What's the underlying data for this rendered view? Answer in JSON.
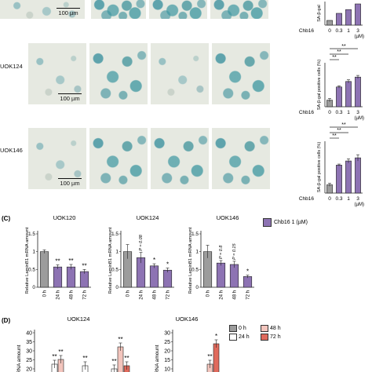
{
  "colors": {
    "purple": "#8d73b3",
    "gray": "#9c9c9c",
    "white": "#ffffff",
    "salmon": "#e39a8e",
    "stain": "#4c9aa6"
  },
  "panel_b": {
    "rows": [
      {
        "label": "",
        "scale": "100 µm"
      },
      {
        "label": "UOK124",
        "scale": "100 µm"
      },
      {
        "label": "UOK146",
        "scale": "100 µm"
      }
    ]
  },
  "panel_c": {
    "letter": "(C)",
    "legend": "Chb16 1 (µM)"
  },
  "panel_d": {
    "letter": "(D)",
    "left_title": "UOK124",
    "right_title": "UOK146",
    "legend": [
      "0 h",
      "24 h",
      "48 h",
      "72 h"
    ]
  },
  "chart_data": [
    {
      "id": "sa-top",
      "type": "bar",
      "ylabel": "SA-β-gal",
      "xlabel_prefix": "Chb16",
      "unit": "µM",
      "categories": [
        "0",
        "0.3",
        "1",
        "3"
      ],
      "values": [
        10,
        25,
        33,
        45
      ],
      "ylim": [
        0,
        50
      ],
      "significance": [],
      "partial": true
    },
    {
      "id": "sa-uok124",
      "type": "bar",
      "ylabel": "SA-β-gal positive cells (%)",
      "xlabel_prefix": "Chb16",
      "unit": "µM",
      "categories": [
        "0",
        "0.3",
        "1",
        "3"
      ],
      "values": [
        6,
        18,
        23,
        27
      ],
      "errors": [
        1.5,
        1,
        1.5,
        1.5
      ],
      "ylim": [
        0,
        40
      ],
      "significance": [
        {
          "from": 0,
          "to": 1,
          "label": "**"
        },
        {
          "from": 0,
          "to": 2,
          "label": "**"
        },
        {
          "from": 0,
          "to": 3,
          "label": "**"
        }
      ]
    },
    {
      "id": "sa-uok146",
      "type": "bar",
      "ylabel": "SA-β-gal positive cells (%)",
      "xlabel_prefix": "Chb16",
      "unit": "µM",
      "categories": [
        "0",
        "0.3",
        "1",
        "3"
      ],
      "values": [
        8,
        27,
        31,
        34
      ],
      "errors": [
        1.5,
        1,
        2,
        3
      ],
      "ylim": [
        0,
        50
      ],
      "significance": [
        {
          "from": 0,
          "to": 1,
          "label": "**"
        },
        {
          "from": 0,
          "to": 2,
          "label": "**"
        },
        {
          "from": 0,
          "to": 3,
          "label": "**"
        }
      ]
    },
    {
      "id": "c-uok120",
      "type": "bar",
      "title": "UOK120",
      "ylabel": "Relative LaminB1 mRNA amount",
      "categories": [
        "0 h",
        "24 h",
        "48 h",
        "72 h"
      ],
      "values": [
        1.0,
        0.57,
        0.57,
        0.44
      ],
      "errors": [
        0.05,
        0.06,
        0.07,
        0.06
      ],
      "ylim": [
        0,
        1.5
      ],
      "yticks": [
        "0",
        "0.5",
        "1",
        "1.5"
      ],
      "labels": [
        "",
        "**",
        "**",
        "**"
      ]
    },
    {
      "id": "c-uok124",
      "type": "bar",
      "title": "UOK124",
      "ylabel": "Relative LaminB1 mRNA amount",
      "categories": [
        "0 h",
        "24 h",
        "48 h",
        "72 h"
      ],
      "values": [
        1.0,
        0.83,
        0.6,
        0.48
      ],
      "errors": [
        0.2,
        0.15,
        0.06,
        0.06
      ],
      "ylim": [
        0,
        1.5
      ],
      "yticks": [
        "0",
        "0.5",
        "1",
        "1.5"
      ],
      "labels": [
        "",
        "P = 0.08",
        "*",
        "*"
      ]
    },
    {
      "id": "c-uok146",
      "type": "bar",
      "title": "UOK146",
      "ylabel": "Relative LaminB1 mRNA amount",
      "categories": [
        "0 h",
        "24 h",
        "48 h",
        "72 h"
      ],
      "values": [
        1.0,
        0.68,
        0.64,
        0.3
      ],
      "errors": [
        0.18,
        0.07,
        0.09,
        0.04
      ],
      "ylim": [
        0,
        1.5
      ],
      "yticks": [
        "0",
        "0.5",
        "1",
        "1.5"
      ],
      "labels": [
        "",
        "P = 0.8",
        "P = 0.15",
        "*"
      ]
    },
    {
      "id": "d-uok124",
      "type": "bar",
      "title": "UOK124",
      "ylabel": "RNA amount",
      "yticks": [
        "20",
        "25",
        "30",
        "35",
        "40"
      ],
      "visible_labels": [
        "**",
        "**",
        "**",
        "**",
        "**",
        "**"
      ],
      "partial": true
    },
    {
      "id": "d-uok146",
      "type": "bar",
      "title": "UOK146",
      "ylabel": "RNA amount",
      "yticks": [
        "10",
        "15",
        "20",
        "25",
        "30"
      ],
      "visible_labels": [
        "**",
        "*"
      ],
      "partial": true
    }
  ]
}
